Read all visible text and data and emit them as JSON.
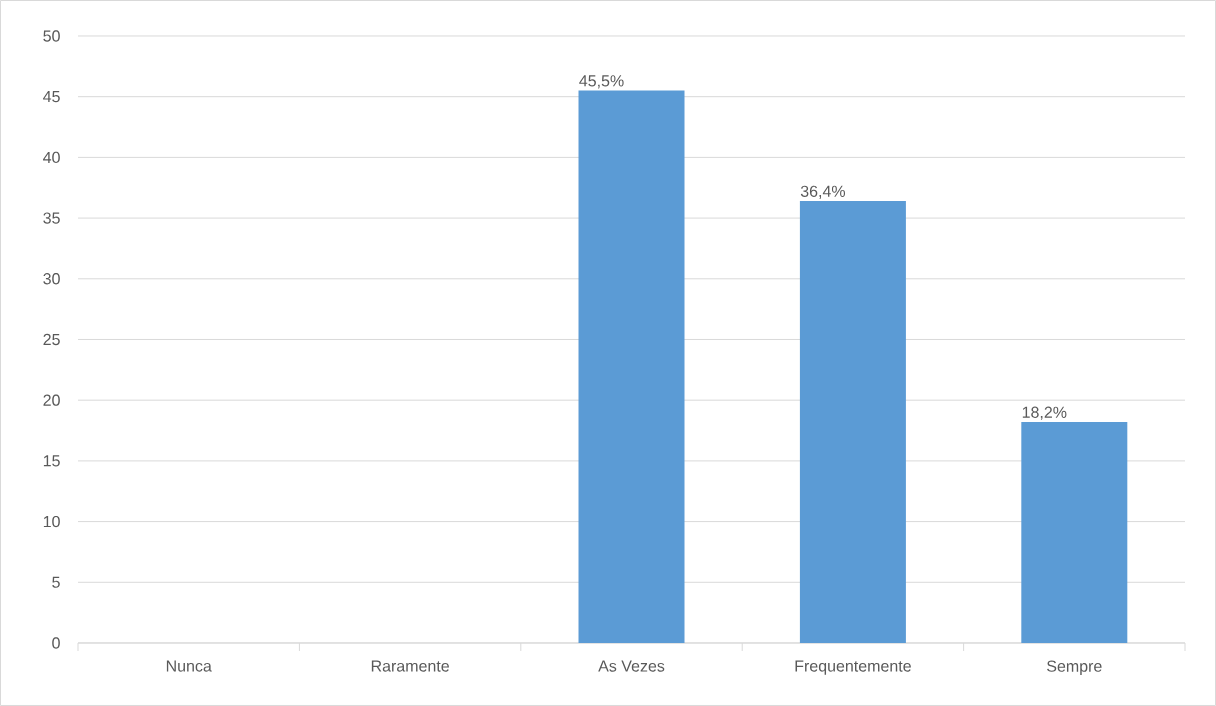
{
  "chart_data": {
    "type": "bar",
    "categories": [
      "Nunca",
      "Raramente",
      "As Vezes",
      "Frequentemente",
      "Sempre"
    ],
    "values": [
      0,
      0,
      45.5,
      36.4,
      18.2
    ],
    "value_labels": [
      null,
      null,
      "45,5%",
      "36,4%",
      "18,2%"
    ],
    "color": "#5b9bd5",
    "ylim": [
      0,
      50
    ],
    "yticks": [
      0,
      5,
      10,
      15,
      20,
      25,
      30,
      35,
      40,
      45,
      50
    ],
    "grid": "y"
  }
}
